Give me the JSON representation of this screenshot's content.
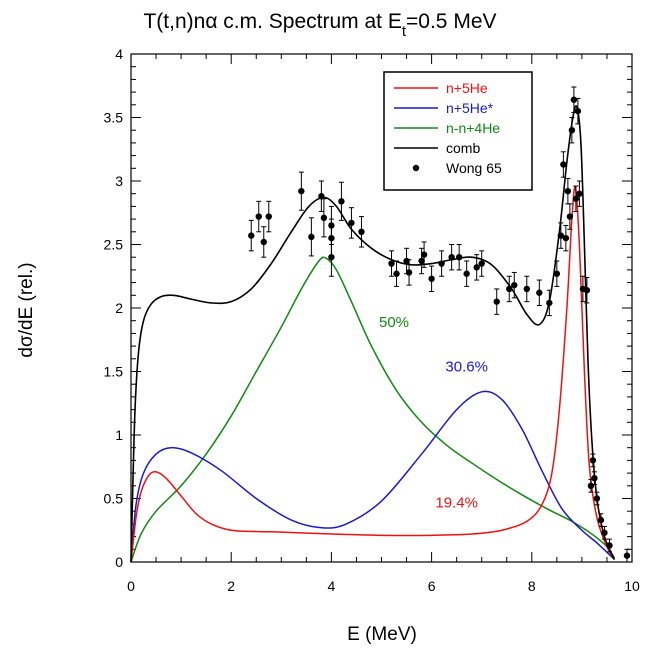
{
  "chart_data": {
    "type": "line",
    "title_main": "T(t,n)nα c.m. Spectrum at E",
    "title_sub": "t",
    "title_tail": "=0.5 MeV",
    "xlabel": "E (MeV)",
    "ylabel": "dσ/dE (rel.)",
    "xlim": [
      0,
      10
    ],
    "ylim": [
      0,
      4
    ],
    "x_ticks": [
      "0",
      "2",
      "4",
      "6",
      "8",
      "10"
    ],
    "y_ticks": [
      "0",
      "0.5",
      "1",
      "1.5",
      "2",
      "2.5",
      "3",
      "3.5",
      "4"
    ],
    "grid": false,
    "legend_position": "top-right",
    "series": [
      {
        "name": "n+5He",
        "color": "#ee1111",
        "points": [
          [
            0,
            0
          ],
          [
            0.1,
            0.35
          ],
          [
            0.2,
            0.55
          ],
          [
            0.35,
            0.68
          ],
          [
            0.5,
            0.71
          ],
          [
            0.7,
            0.66
          ],
          [
            1.0,
            0.52
          ],
          [
            1.3,
            0.38
          ],
          [
            1.6,
            0.3
          ],
          [
            2.0,
            0.25
          ],
          [
            2.5,
            0.24
          ],
          [
            3,
            0.235
          ],
          [
            4,
            0.22
          ],
          [
            5,
            0.21
          ],
          [
            6,
            0.21
          ],
          [
            6.8,
            0.22
          ],
          [
            7.4,
            0.25
          ],
          [
            7.9,
            0.32
          ],
          [
            8.2,
            0.45
          ],
          [
            8.4,
            0.7
          ],
          [
            8.55,
            1.2
          ],
          [
            8.7,
            2.0
          ],
          [
            8.8,
            2.7
          ],
          [
            8.87,
            2.95
          ],
          [
            8.95,
            2.5
          ],
          [
            9.05,
            1.5
          ],
          [
            9.15,
            0.75
          ],
          [
            9.3,
            0.35
          ],
          [
            9.5,
            0.12
          ],
          [
            9.65,
            0.02
          ]
        ]
      },
      {
        "name": "n+5He*",
        "color": "#1a1acc",
        "points": [
          [
            0,
            0
          ],
          [
            0.1,
            0.45
          ],
          [
            0.25,
            0.7
          ],
          [
            0.5,
            0.85
          ],
          [
            0.8,
            0.9
          ],
          [
            1.2,
            0.86
          ],
          [
            1.8,
            0.72
          ],
          [
            2.5,
            0.5
          ],
          [
            3.2,
            0.33
          ],
          [
            3.8,
            0.27
          ],
          [
            4.3,
            0.3
          ],
          [
            5,
            0.48
          ],
          [
            5.8,
            0.85
          ],
          [
            6.5,
            1.2
          ],
          [
            7.0,
            1.34
          ],
          [
            7.4,
            1.28
          ],
          [
            7.8,
            1.05
          ],
          [
            8.2,
            0.72
          ],
          [
            8.6,
            0.42
          ],
          [
            9,
            0.25
          ],
          [
            9.3,
            0.15
          ],
          [
            9.65,
            0.02
          ]
        ]
      },
      {
        "name": "n-n+4He",
        "color": "#118811",
        "points": [
          [
            0,
            0
          ],
          [
            0.2,
            0.22
          ],
          [
            0.5,
            0.4
          ],
          [
            1,
            0.6
          ],
          [
            1.5,
            0.85
          ],
          [
            2,
            1.15
          ],
          [
            2.5,
            1.5
          ],
          [
            3,
            1.85
          ],
          [
            3.4,
            2.15
          ],
          [
            3.75,
            2.37
          ],
          [
            3.9,
            2.39
          ],
          [
            4.1,
            2.3
          ],
          [
            4.4,
            2.05
          ],
          [
            4.8,
            1.7
          ],
          [
            5.3,
            1.35
          ],
          [
            5.8,
            1.1
          ],
          [
            6.3,
            0.92
          ],
          [
            6.8,
            0.78
          ],
          [
            7.3,
            0.65
          ],
          [
            7.8,
            0.53
          ],
          [
            8.3,
            0.42
          ],
          [
            8.8,
            0.32
          ],
          [
            9.2,
            0.22
          ],
          [
            9.5,
            0.12
          ],
          [
            9.65,
            0.03
          ]
        ]
      },
      {
        "name": "comb",
        "color": "#000000",
        "points": [
          [
            0,
            0
          ],
          [
            0.03,
            0.5
          ],
          [
            0.08,
            1.2
          ],
          [
            0.15,
            1.65
          ],
          [
            0.25,
            1.9
          ],
          [
            0.4,
            2.03
          ],
          [
            0.6,
            2.09
          ],
          [
            0.85,
            2.1
          ],
          [
            1.2,
            2.07
          ],
          [
            1.6,
            2.04
          ],
          [
            2.0,
            2.05
          ],
          [
            2.4,
            2.15
          ],
          [
            2.8,
            2.35
          ],
          [
            3.2,
            2.6
          ],
          [
            3.55,
            2.8
          ],
          [
            3.85,
            2.87
          ],
          [
            4.1,
            2.8
          ],
          [
            4.4,
            2.62
          ],
          [
            4.8,
            2.47
          ],
          [
            5.2,
            2.38
          ],
          [
            5.6,
            2.34
          ],
          [
            6.0,
            2.35
          ],
          [
            6.4,
            2.38
          ],
          [
            6.8,
            2.4
          ],
          [
            7.2,
            2.34
          ],
          [
            7.6,
            2.15
          ],
          [
            7.9,
            1.95
          ],
          [
            8.15,
            1.87
          ],
          [
            8.35,
            2.05
          ],
          [
            8.55,
            2.6
          ],
          [
            8.7,
            3.15
          ],
          [
            8.82,
            3.5
          ],
          [
            8.9,
            3.58
          ],
          [
            8.98,
            3.3
          ],
          [
            9.05,
            2.5
          ],
          [
            9.12,
            1.6
          ],
          [
            9.2,
            0.95
          ],
          [
            9.3,
            0.5
          ],
          [
            9.45,
            0.2
          ],
          [
            9.65,
            0.02
          ]
        ]
      }
    ],
    "data_series": {
      "name": "Wong 65",
      "color": "#000000",
      "points": [
        [
          2.4,
          2.57,
          0.12
        ],
        [
          2.55,
          2.72,
          0.12
        ],
        [
          2.65,
          2.52,
          0.12
        ],
        [
          2.75,
          2.72,
          0.12
        ],
        [
          3.4,
          2.92,
          0.15
        ],
        [
          3.6,
          2.56,
          0.15
        ],
        [
          3.8,
          2.88,
          0.12
        ],
        [
          3.85,
          2.71,
          0.15
        ],
        [
          4.0,
          2.65,
          0.15
        ],
        [
          4.0,
          2.55,
          0.15
        ],
        [
          4.0,
          2.4,
          0.15
        ],
        [
          4.2,
          2.84,
          0.15
        ],
        [
          4.4,
          2.67,
          0.12
        ],
        [
          4.6,
          2.6,
          0.12
        ],
        [
          5.2,
          2.35,
          0.1
        ],
        [
          5.3,
          2.27,
          0.1
        ],
        [
          5.5,
          2.37,
          0.1
        ],
        [
          5.55,
          2.28,
          0.1
        ],
        [
          5.8,
          2.37,
          0.1
        ],
        [
          5.85,
          2.42,
          0.1
        ],
        [
          6.0,
          2.23,
          0.1
        ],
        [
          6.2,
          2.35,
          0.1
        ],
        [
          6.4,
          2.4,
          0.1
        ],
        [
          6.55,
          2.4,
          0.1
        ],
        [
          6.7,
          2.27,
          0.1
        ],
        [
          6.9,
          2.32,
          0.1
        ],
        [
          7.0,
          2.35,
          0.1
        ],
        [
          7.3,
          2.05,
          0.1
        ],
        [
          7.55,
          2.15,
          0.1
        ],
        [
          7.65,
          2.18,
          0.1
        ],
        [
          7.9,
          2.15,
          0.1
        ],
        [
          8.15,
          2.12,
          0.1
        ],
        [
          8.35,
          2.04,
          0.1
        ],
        [
          8.5,
          2.27,
          0.1
        ],
        [
          8.58,
          2.57,
          0.1
        ],
        [
          8.63,
          3.13,
          0.1
        ],
        [
          8.68,
          2.55,
          0.1
        ],
        [
          8.72,
          2.92,
          0.1
        ],
        [
          8.76,
          2.72,
          0.1
        ],
        [
          8.8,
          3.4,
          0.1
        ],
        [
          8.84,
          3.64,
          0.1
        ],
        [
          8.88,
          2.86,
          0.1
        ],
        [
          8.92,
          3.55,
          0.1
        ],
        [
          8.95,
          2.9,
          0.1
        ],
        [
          9.02,
          2.15,
          0.1
        ],
        [
          9.1,
          2.14,
          0.1
        ],
        [
          9.18,
          0.6,
          0.05
        ],
        [
          9.22,
          0.8,
          0.05
        ],
        [
          9.25,
          0.66,
          0.05
        ],
        [
          9.3,
          0.5,
          0.05
        ],
        [
          9.38,
          0.33,
          0.05
        ],
        [
          9.45,
          0.23,
          0.05
        ],
        [
          9.55,
          0.13,
          0.05
        ],
        [
          9.9,
          0.05,
          0.05
        ]
      ]
    },
    "annotations": [
      {
        "text": "50%",
        "x": 5.25,
        "y": 1.85,
        "color": "#118811"
      },
      {
        "text": "30.6%",
        "x": 6.7,
        "y": 1.5,
        "color": "#1a1acc"
      },
      {
        "text": "19.4%",
        "x": 6.5,
        "y": 0.43,
        "color": "#ee1111"
      }
    ]
  }
}
